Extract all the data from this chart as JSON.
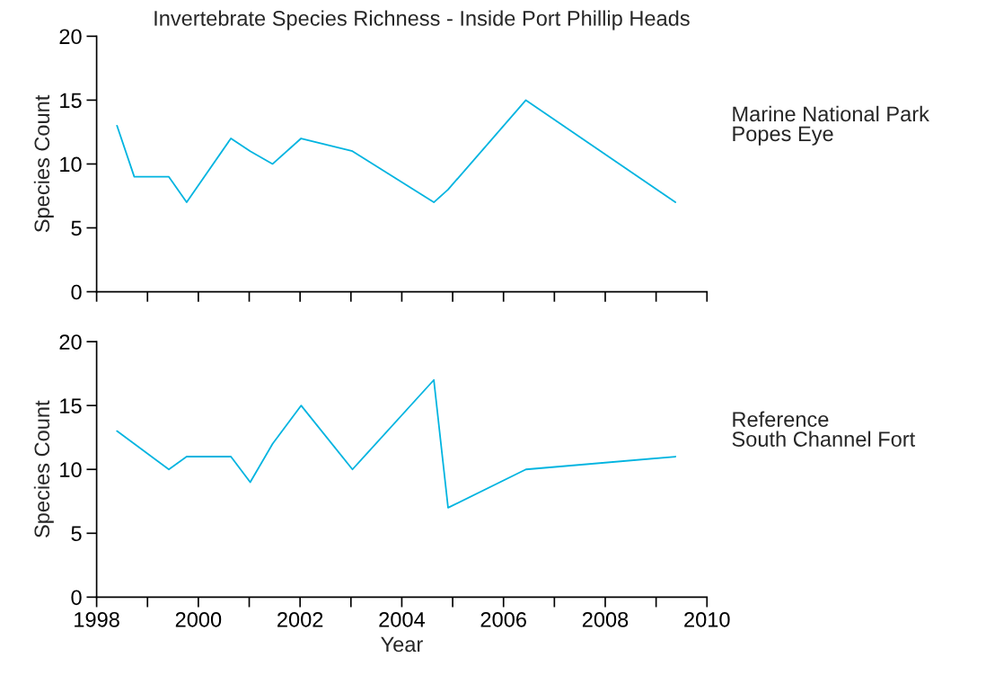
{
  "chart_data": [
    {
      "type": "line",
      "title": "Invertebrate Species Richness - Inside Port Phillip Heads",
      "ylabel": "Species Count",
      "annotations": [
        "Marine National Park\nPopes Eye"
      ],
      "x": [
        1998.4,
        1998.74,
        1999.42,
        1999.77,
        2000.64,
        2001.02,
        2001.46,
        2002.02,
        2003.03,
        2004.63,
        2004.91,
        2006.44,
        2009.38
      ],
      "series": [
        {
          "color": "#00b4e0",
          "values": [
            13,
            9,
            9,
            7,
            12,
            11,
            10,
            12,
            11,
            7,
            8,
            15,
            7
          ]
        }
      ],
      "xlim": [
        1998,
        2010
      ],
      "xticks": [
        {
          "value": 1998,
          "label": null
        },
        {
          "value": 1999,
          "label": null
        },
        {
          "value": 2000,
          "label": null
        },
        {
          "value": 2001,
          "label": null
        },
        {
          "value": 2002,
          "label": null
        },
        {
          "value": 2003,
          "label": null
        },
        {
          "value": 2004,
          "label": null
        },
        {
          "value": 2005,
          "label": null
        },
        {
          "value": 2006,
          "label": null
        },
        {
          "value": 2007,
          "label": null
        },
        {
          "value": 2008,
          "label": null
        },
        {
          "value": 2009,
          "label": null
        },
        {
          "value": 2010,
          "label": null
        }
      ],
      "ylim": [
        0,
        20
      ],
      "yticks": [
        0,
        5,
        10,
        15,
        20
      ],
      "tick_labels": "y",
      "grid": false
    },
    {
      "type": "line",
      "xlabel": "Year",
      "ylabel": "Species Count",
      "annotations": [
        "Reference\nSouth Channel Fort"
      ],
      "x": [
        1998.4,
        1999.42,
        1999.77,
        2000.64,
        2001.02,
        2001.46,
        2002.02,
        2003.03,
        2004.63,
        2004.91,
        2006.44,
        2009.38
      ],
      "series": [
        {
          "color": "#00b4e0",
          "values": [
            13,
            10,
            11,
            11,
            9,
            12,
            15,
            10,
            17,
            7,
            10,
            11
          ]
        }
      ],
      "xlim": [
        1998,
        2010
      ],
      "xticks": [
        1998,
        {
          "value": 1999,
          "label": null
        },
        2000,
        {
          "value": 2001,
          "label": null
        },
        2002,
        {
          "value": 2003,
          "label": null
        },
        2004,
        {
          "value": 2005,
          "label": null
        },
        2006,
        {
          "value": 2007,
          "label": null
        },
        2008,
        {
          "value": 2009,
          "label": null
        },
        2010
      ],
      "ylim": [
        0,
        20
      ],
      "yticks": [
        0,
        5,
        10,
        15,
        20
      ],
      "grid": false
    }
  ]
}
